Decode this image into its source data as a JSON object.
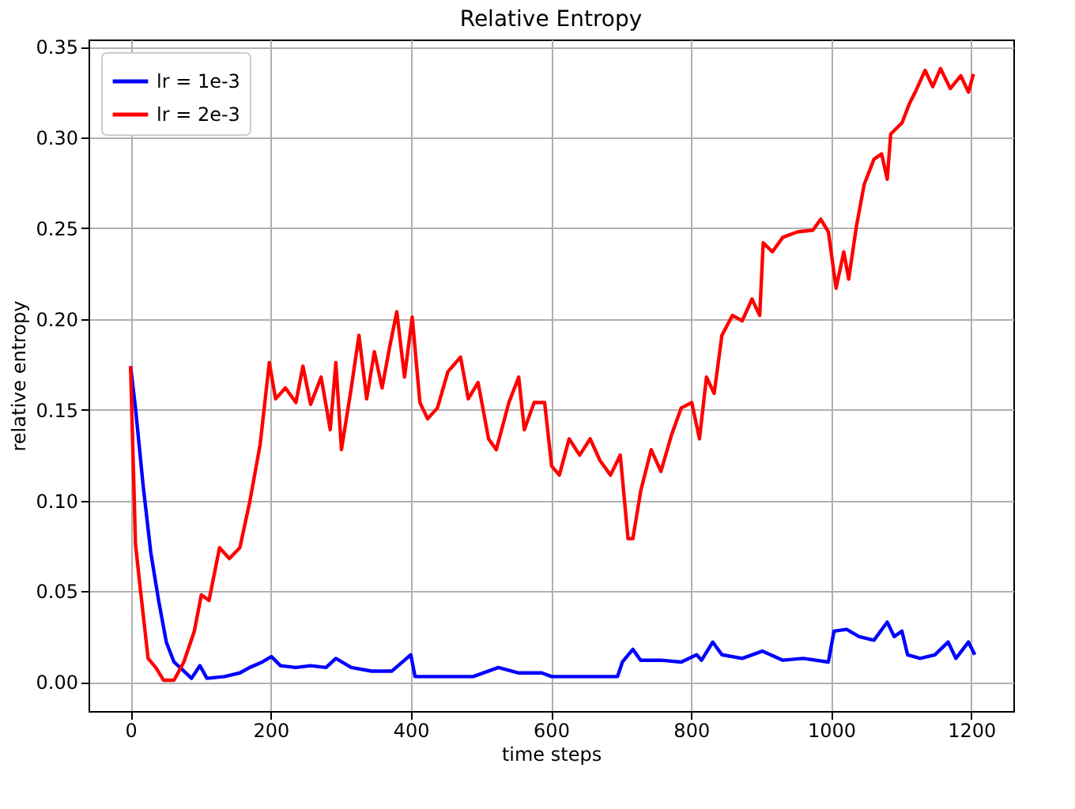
{
  "chart_data": {
    "type": "line",
    "title": "Relative Entropy",
    "xlabel": "time steps",
    "ylabel": "relative entropy",
    "xlim": [
      -60,
      1260
    ],
    "ylim": [
      -0.016,
      0.354
    ],
    "xticks": [
      0,
      200,
      400,
      600,
      800,
      1000,
      1200
    ],
    "yticks": [
      {
        "value": 0,
        "label": "0.00"
      },
      {
        "value": 0.05,
        "label": "0.05"
      },
      {
        "value": 0.1,
        "label": "0.10"
      },
      {
        "value": 0.15,
        "label": "0.15"
      },
      {
        "value": 0.2,
        "label": "0.20"
      },
      {
        "value": 0.25,
        "label": "0.25"
      },
      {
        "value": 0.3,
        "label": "0.30"
      },
      {
        "value": 0.35,
        "label": "0.35"
      }
    ],
    "grid": true,
    "legend": "top left",
    "line_style": "solid",
    "marker": "none",
    "series": [
      {
        "name": "lr = 1e-3",
        "color": "#0000ff",
        "x": [
          0,
          7,
          18,
          29,
          40,
          51,
          62,
          76,
          87,
          99,
          109,
          134,
          156,
          170,
          188,
          201,
          214,
          236,
          257,
          279,
          293,
          315,
          344,
          373,
          400,
          406,
          446,
          489,
          525,
          554,
          587,
          601,
          641,
          695,
          702,
          717,
          728,
          757,
          786,
          808,
          815,
          831,
          844,
          873,
          902,
          931,
          960,
          996,
          1004,
          1022,
          1040,
          1061,
          1080,
          1090,
          1101,
          1109,
          1127,
          1148,
          1167,
          1178,
          1196,
          1205
        ],
        "values": [
          0.174,
          0.151,
          0.108,
          0.071,
          0.045,
          0.022,
          0.011,
          0.006,
          0.002,
          0.009,
          0.002,
          0.003,
          0.005,
          0.008,
          0.011,
          0.014,
          0.009,
          0.008,
          0.009,
          0.008,
          0.013,
          0.008,
          0.006,
          0.006,
          0.015,
          0.003,
          0.003,
          0.003,
          0.008,
          0.005,
          0.005,
          0.003,
          0.003,
          0.003,
          0.011,
          0.018,
          0.012,
          0.012,
          0.011,
          0.015,
          0.012,
          0.022,
          0.015,
          0.013,
          0.017,
          0.012,
          0.013,
          0.011,
          0.028,
          0.029,
          0.025,
          0.023,
          0.033,
          0.025,
          0.028,
          0.015,
          0.013,
          0.015,
          0.022,
          0.013,
          0.022,
          0.015
        ]
      },
      {
        "name": "lr = 2e-3",
        "color": "#ff0000",
        "x": [
          0,
          7,
          14,
          25,
          36,
          47,
          62,
          76,
          91,
          101,
          112,
          127,
          141,
          156,
          170,
          185,
          198,
          207,
          221,
          236,
          246,
          257,
          272,
          285,
          293,
          301,
          315,
          326,
          337,
          348,
          359,
          370,
          380,
          391,
          402,
          413,
          424,
          438,
          453,
          471,
          482,
          496,
          511,
          522,
          540,
          554,
          562,
          576,
          591,
          601,
          612,
          626,
          641,
          656,
          670,
          685,
          699,
          710,
          717,
          728,
          743,
          757,
          772,
          786,
          801,
          812,
          822,
          833,
          844,
          859,
          873,
          887,
          898,
          903,
          916,
          931,
          952,
          974,
          985,
          996,
          1007,
          1018,
          1025,
          1036,
          1047,
          1061,
          1072,
          1080,
          1085,
          1101,
          1112,
          1120,
          1134,
          1145,
          1156,
          1170,
          1185,
          1196,
          1203
        ],
        "values": [
          0.174,
          0.076,
          0.051,
          0.013,
          0.008,
          0.001,
          0.001,
          0.011,
          0.028,
          0.048,
          0.045,
          0.074,
          0.068,
          0.074,
          0.099,
          0.131,
          0.176,
          0.156,
          0.162,
          0.154,
          0.174,
          0.153,
          0.168,
          0.139,
          0.176,
          0.128,
          0.162,
          0.191,
          0.156,
          0.182,
          0.162,
          0.185,
          0.204,
          0.168,
          0.201,
          0.154,
          0.145,
          0.151,
          0.171,
          0.179,
          0.156,
          0.165,
          0.134,
          0.128,
          0.154,
          0.168,
          0.139,
          0.154,
          0.154,
          0.119,
          0.114,
          0.134,
          0.125,
          0.134,
          0.122,
          0.114,
          0.125,
          0.079,
          0.079,
          0.105,
          0.128,
          0.116,
          0.136,
          0.151,
          0.154,
          0.134,
          0.168,
          0.159,
          0.191,
          0.202,
          0.199,
          0.211,
          0.202,
          0.242,
          0.237,
          0.245,
          0.248,
          0.249,
          0.255,
          0.248,
          0.217,
          0.237,
          0.222,
          0.251,
          0.274,
          0.288,
          0.291,
          0.277,
          0.302,
          0.308,
          0.319,
          0.325,
          0.337,
          0.328,
          0.338,
          0.327,
          0.334,
          0.325,
          0.335
        ]
      }
    ]
  }
}
